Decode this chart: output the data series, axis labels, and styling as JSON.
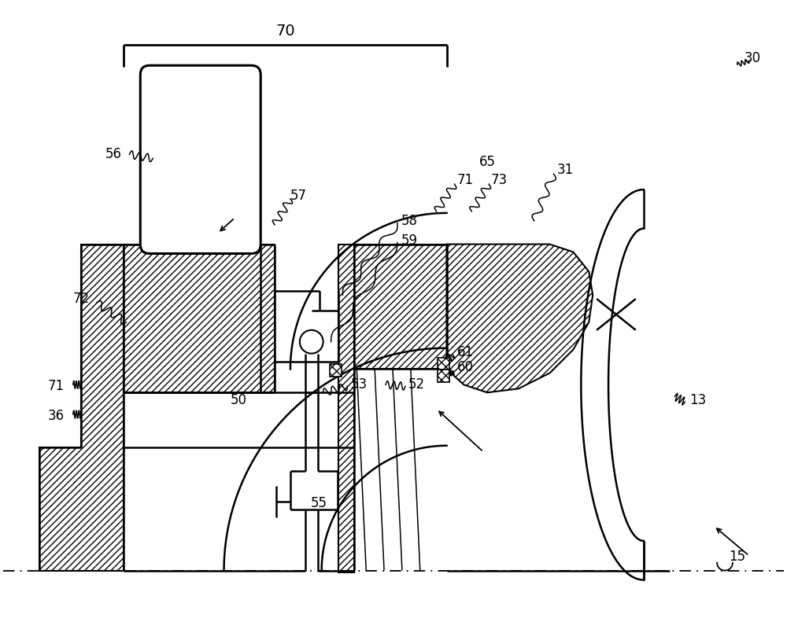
{
  "bg_color": "#ffffff",
  "line_color": "#000000",
  "figsize": [
    10.0,
    7.86
  ],
  "dpi": 100
}
